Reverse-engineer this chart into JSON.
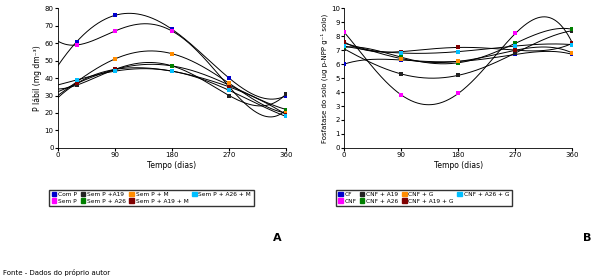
{
  "chart_A": {
    "xlabel": "Tempo (dias)",
    "ylabel": "P lábil (mg dm⁻³)",
    "xticks": [
      0,
      90,
      180,
      270,
      360
    ],
    "ylim": [
      0,
      80
    ],
    "yticks": [
      0,
      10,
      20,
      30,
      40,
      50,
      60,
      70,
      80
    ],
    "series": {
      "Com P": {
        "color": "#0000CC",
        "points": [
          [
            30,
            61
          ],
          [
            90,
            76
          ],
          [
            180,
            68
          ],
          [
            270,
            40
          ],
          [
            360,
            30
          ]
        ]
      },
      "Sem P": {
        "color": "#FF00FF",
        "points": [
          [
            30,
            59
          ],
          [
            90,
            67
          ],
          [
            180,
            67
          ],
          [
            270,
            35
          ],
          [
            360,
            22
          ]
        ]
      },
      "Sem P +A19": {
        "color": "#222222",
        "points": [
          [
            30,
            36
          ],
          [
            90,
            45
          ],
          [
            180,
            47
          ],
          [
            270,
            30
          ],
          [
            360,
            31
          ]
        ]
      },
      "Sem P + A26": {
        "color": "#008000",
        "points": [
          [
            30,
            37
          ],
          [
            90,
            45
          ],
          [
            180,
            47
          ],
          [
            270,
            36
          ],
          [
            360,
            22
          ]
        ]
      },
      "Sem P + M": {
        "color": "#FF8C00",
        "points": [
          [
            30,
            38
          ],
          [
            90,
            51
          ],
          [
            180,
            54
          ],
          [
            270,
            37
          ],
          [
            360,
            20
          ]
        ]
      },
      "Sem P + A19 + M": {
        "color": "#800000",
        "points": [
          [
            30,
            37
          ],
          [
            90,
            45
          ],
          [
            180,
            44
          ],
          [
            270,
            35
          ],
          [
            360,
            19
          ]
        ]
      },
      "Sem P + A26 + M": {
        "color": "#00BFFF",
        "points": [
          [
            30,
            39
          ],
          [
            90,
            44
          ],
          [
            180,
            44
          ],
          [
            270,
            33
          ],
          [
            360,
            18
          ]
        ]
      }
    }
  },
  "chart_B": {
    "xlabel": "Tempo (dias)",
    "ylabel": "Fosfatase do solo (ug p-NPP g⁻¹ solo)",
    "xticks": [
      0,
      90,
      180,
      270,
      360
    ],
    "ylim": [
      0,
      10
    ],
    "yticks": [
      0,
      1,
      2,
      3,
      4,
      5,
      6,
      7,
      8,
      9,
      10
    ],
    "series": {
      "CF": {
        "color": "#0000CC",
        "points": [
          [
            0,
            6.0
          ],
          [
            90,
            6.3
          ],
          [
            180,
            6.2
          ],
          [
            270,
            6.7
          ],
          [
            360,
            6.7
          ]
        ]
      },
      "CNF": {
        "color": "#FF00FF",
        "points": [
          [
            0,
            8.3
          ],
          [
            90,
            3.8
          ],
          [
            180,
            3.9
          ],
          [
            270,
            8.2
          ],
          [
            360,
            7.5
          ]
        ]
      },
      "CNF + A19": {
        "color": "#222222",
        "points": [
          [
            0,
            7.1
          ],
          [
            90,
            5.3
          ],
          [
            180,
            5.2
          ],
          [
            270,
            6.8
          ],
          [
            360,
            8.4
          ]
        ]
      },
      "CNF + A26": {
        "color": "#008000",
        "points": [
          [
            0,
            7.2
          ],
          [
            90,
            6.5
          ],
          [
            180,
            6.1
          ],
          [
            270,
            7.5
          ],
          [
            360,
            8.5
          ]
        ]
      },
      "CNF + G": {
        "color": "#FF8C00",
        "points": [
          [
            0,
            7.5
          ],
          [
            90,
            6.4
          ],
          [
            180,
            6.2
          ],
          [
            270,
            7.0
          ],
          [
            360,
            6.8
          ]
        ]
      },
      "CNF + A19 + G": {
        "color": "#800000",
        "points": [
          [
            0,
            7.6
          ],
          [
            90,
            6.9
          ],
          [
            180,
            7.2
          ],
          [
            270,
            7.0
          ],
          [
            360,
            7.5
          ]
        ]
      },
      "CNF + A26 + G": {
        "color": "#00BFFF",
        "points": [
          [
            0,
            7.3
          ],
          [
            90,
            6.8
          ],
          [
            180,
            6.9
          ],
          [
            270,
            7.3
          ],
          [
            360,
            7.4
          ]
        ]
      }
    }
  },
  "label_A": "A",
  "label_B": "B",
  "fonte": "Fonte - Dados do próprio autor",
  "background_color": "#FFFFFF"
}
